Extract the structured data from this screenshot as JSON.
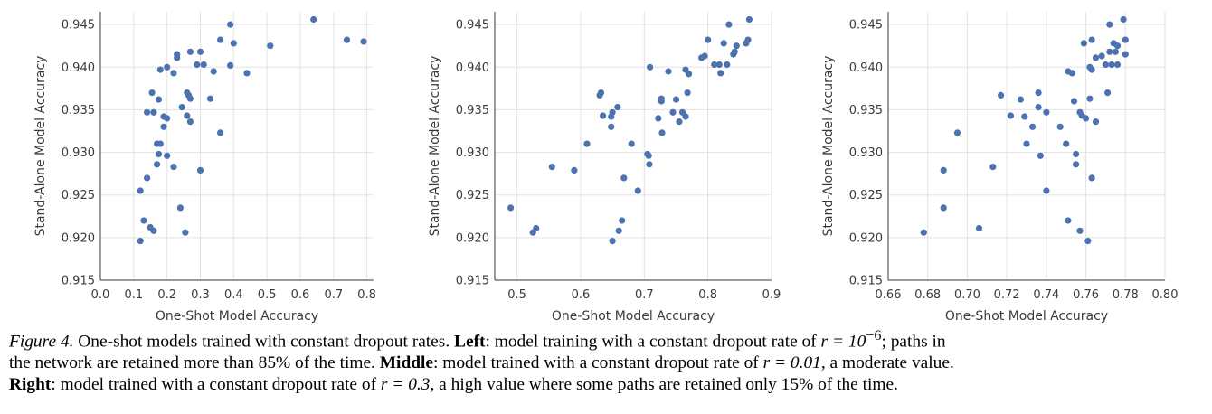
{
  "chart_data": [
    {
      "type": "scatter",
      "title": "",
      "xlabel": "One-Shot Model Accuracy",
      "ylabel": "Stand-Alone Model Accuracy",
      "xlim": [
        0.0,
        0.82
      ],
      "ylim": [
        0.915,
        0.9465
      ],
      "xticks": [
        "0.0",
        "0.1",
        "0.2",
        "0.3",
        "0.4",
        "0.5",
        "0.6",
        "0.7",
        "0.8"
      ],
      "yticks": [
        "0.915",
        "0.920",
        "0.925",
        "0.930",
        "0.935",
        "0.940",
        "0.945"
      ],
      "points": [
        [
          0.12,
          0.9196
        ],
        [
          0.12,
          0.9255
        ],
        [
          0.13,
          0.922
        ],
        [
          0.14,
          0.927
        ],
        [
          0.15,
          0.9212
        ],
        [
          0.16,
          0.9208
        ],
        [
          0.14,
          0.9347
        ],
        [
          0.16,
          0.9347
        ],
        [
          0.155,
          0.937
        ],
        [
          0.17,
          0.9286
        ],
        [
          0.17,
          0.931
        ],
        [
          0.18,
          0.931
        ],
        [
          0.175,
          0.9298
        ],
        [
          0.175,
          0.9362
        ],
        [
          0.18,
          0.9397
        ],
        [
          0.19,
          0.933
        ],
        [
          0.19,
          0.9342
        ],
        [
          0.2,
          0.934
        ],
        [
          0.2,
          0.94
        ],
        [
          0.2,
          0.9296
        ],
        [
          0.22,
          0.9283
        ],
        [
          0.22,
          0.9393
        ],
        [
          0.23,
          0.9411
        ],
        [
          0.23,
          0.9415
        ],
        [
          0.24,
          0.9235
        ],
        [
          0.245,
          0.9353
        ],
        [
          0.255,
          0.9206
        ],
        [
          0.26,
          0.937
        ],
        [
          0.265,
          0.9367
        ],
        [
          0.26,
          0.9343
        ],
        [
          0.27,
          0.9336
        ],
        [
          0.27,
          0.9363
        ],
        [
          0.27,
          0.9418
        ],
        [
          0.29,
          0.9403
        ],
        [
          0.3,
          0.9279
        ],
        [
          0.3,
          0.9418
        ],
        [
          0.31,
          0.9403
        ],
        [
          0.33,
          0.9363
        ],
        [
          0.34,
          0.9395
        ],
        [
          0.36,
          0.9323
        ],
        [
          0.36,
          0.9432
        ],
        [
          0.39,
          0.9402
        ],
        [
          0.39,
          0.945
        ],
        [
          0.4,
          0.9428
        ],
        [
          0.44,
          0.9393
        ],
        [
          0.51,
          0.9425
        ],
        [
          0.64,
          0.9456
        ],
        [
          0.74,
          0.9432
        ],
        [
          0.79,
          0.943
        ]
      ]
    },
    {
      "type": "scatter",
      "title": "",
      "xlabel": "One-Shot Model Accuracy",
      "ylabel": "Stand-Alone Model Accuracy",
      "xlim": [
        0.465,
        0.9
      ],
      "ylim": [
        0.915,
        0.9465
      ],
      "xticks": [
        "0.5",
        "0.6",
        "0.7",
        "0.8",
        "0.9"
      ],
      "yticks": [
        "0.915",
        "0.920",
        "0.925",
        "0.930",
        "0.935",
        "0.940",
        "0.945"
      ],
      "points": [
        [
          0.49,
          0.9235
        ],
        [
          0.525,
          0.9206
        ],
        [
          0.53,
          0.9211
        ],
        [
          0.555,
          0.9283
        ],
        [
          0.59,
          0.9279
        ],
        [
          0.61,
          0.931
        ],
        [
          0.63,
          0.9367
        ],
        [
          0.632,
          0.937
        ],
        [
          0.635,
          0.9343
        ],
        [
          0.648,
          0.9342
        ],
        [
          0.648,
          0.933
        ],
        [
          0.65,
          0.9347
        ],
        [
          0.65,
          0.9196
        ],
        [
          0.658,
          0.9353
        ],
        [
          0.66,
          0.9208
        ],
        [
          0.665,
          0.922
        ],
        [
          0.668,
          0.927
        ],
        [
          0.68,
          0.931
        ],
        [
          0.69,
          0.9255
        ],
        [
          0.705,
          0.9298
        ],
        [
          0.707,
          0.9296
        ],
        [
          0.708,
          0.9286
        ],
        [
          0.709,
          0.94
        ],
        [
          0.722,
          0.934
        ],
        [
          0.727,
          0.9363
        ],
        [
          0.727,
          0.936
        ],
        [
          0.728,
          0.9323
        ],
        [
          0.738,
          0.9395
        ],
        [
          0.745,
          0.9347
        ],
        [
          0.75,
          0.9362
        ],
        [
          0.755,
          0.9336
        ],
        [
          0.76,
          0.9347
        ],
        [
          0.765,
          0.9342
        ],
        [
          0.765,
          0.9397
        ],
        [
          0.768,
          0.937
        ],
        [
          0.77,
          0.9392
        ],
        [
          0.79,
          0.9411
        ],
        [
          0.795,
          0.9413
        ],
        [
          0.8,
          0.9432
        ],
        [
          0.81,
          0.9403
        ],
        [
          0.818,
          0.9403
        ],
        [
          0.82,
          0.9393
        ],
        [
          0.825,
          0.9428
        ],
        [
          0.83,
          0.9403
        ],
        [
          0.833,
          0.945
        ],
        [
          0.84,
          0.9415
        ],
        [
          0.842,
          0.9418
        ],
        [
          0.845,
          0.9425
        ],
        [
          0.86,
          0.9428
        ],
        [
          0.863,
          0.9432
        ],
        [
          0.865,
          0.9456
        ]
      ]
    },
    {
      "type": "scatter",
      "title": "",
      "xlabel": "One-Shot Model Accuracy",
      "ylabel": "Stand-Alone Model Accuracy",
      "xlim": [
        0.66,
        0.8
      ],
      "ylim": [
        0.915,
        0.9465
      ],
      "xticks": [
        "0.66",
        "0.68",
        "0.70",
        "0.72",
        "0.74",
        "0.76",
        "0.78",
        "0.80"
      ],
      "yticks": [
        "0.915",
        "0.920",
        "0.925",
        "0.930",
        "0.935",
        "0.940",
        "0.945"
      ],
      "points": [
        [
          0.678,
          0.9206
        ],
        [
          0.688,
          0.9235
        ],
        [
          0.688,
          0.9279
        ],
        [
          0.695,
          0.9323
        ],
        [
          0.706,
          0.9211
        ],
        [
          0.713,
          0.9283
        ],
        [
          0.717,
          0.9367
        ],
        [
          0.722,
          0.9343
        ],
        [
          0.727,
          0.9362
        ],
        [
          0.729,
          0.9342
        ],
        [
          0.73,
          0.931
        ],
        [
          0.733,
          0.933
        ],
        [
          0.736,
          0.9353
        ],
        [
          0.736,
          0.937
        ],
        [
          0.737,
          0.9296
        ],
        [
          0.74,
          0.9347
        ],
        [
          0.74,
          0.9255
        ],
        [
          0.747,
          0.933
        ],
        [
          0.75,
          0.931
        ],
        [
          0.751,
          0.922
        ],
        [
          0.751,
          0.9395
        ],
        [
          0.753,
          0.9393
        ],
        [
          0.754,
          0.936
        ],
        [
          0.755,
          0.9298
        ],
        [
          0.755,
          0.9286
        ],
        [
          0.757,
          0.9347
        ],
        [
          0.757,
          0.9208
        ],
        [
          0.758,
          0.9343
        ],
        [
          0.759,
          0.9428
        ],
        [
          0.76,
          0.934
        ],
        [
          0.761,
          0.9196
        ],
        [
          0.762,
          0.94
        ],
        [
          0.762,
          0.9363
        ],
        [
          0.763,
          0.927
        ],
        [
          0.763,
          0.9432
        ],
        [
          0.763,
          0.9397
        ],
        [
          0.765,
          0.9336
        ],
        [
          0.765,
          0.9411
        ],
        [
          0.768,
          0.9413
        ],
        [
          0.77,
          0.9403
        ],
        [
          0.771,
          0.937
        ],
        [
          0.772,
          0.9418
        ],
        [
          0.772,
          0.945
        ],
        [
          0.773,
          0.9403
        ],
        [
          0.774,
          0.9428
        ],
        [
          0.775,
          0.9418
        ],
        [
          0.776,
          0.9425
        ],
        [
          0.776,
          0.9403
        ],
        [
          0.779,
          0.9456
        ],
        [
          0.78,
          0.9432
        ],
        [
          0.78,
          0.9415
        ]
      ]
    }
  ],
  "caption": {
    "figure_label": "Figure 4.",
    "intro": " One-shot models trained with constant dropout rates. ",
    "left_label": "Left",
    "left_text_a": ": model training with a constant dropout rate of ",
    "left_rate": "r = 10",
    "left_rate_exp": "−6",
    "left_text_b": "; paths in",
    "line2_a": "the network are retained more than 85% of the time. ",
    "middle_label": "Middle",
    "middle_text_a": ": model trained with a constant dropout rate of ",
    "middle_rate": "r = 0.01",
    "middle_text_b": ", a moderate value.",
    "right_label": "Right",
    "right_text_a": ": model trained with a constant dropout rate of ",
    "right_rate": "r = 0.3",
    "right_text_b": ", a high value where some paths are retained only 15% of the time."
  },
  "colors": {
    "marker": "#4c72b0",
    "grid": "#e3e3e3",
    "axis": "#3a3a3a"
  }
}
